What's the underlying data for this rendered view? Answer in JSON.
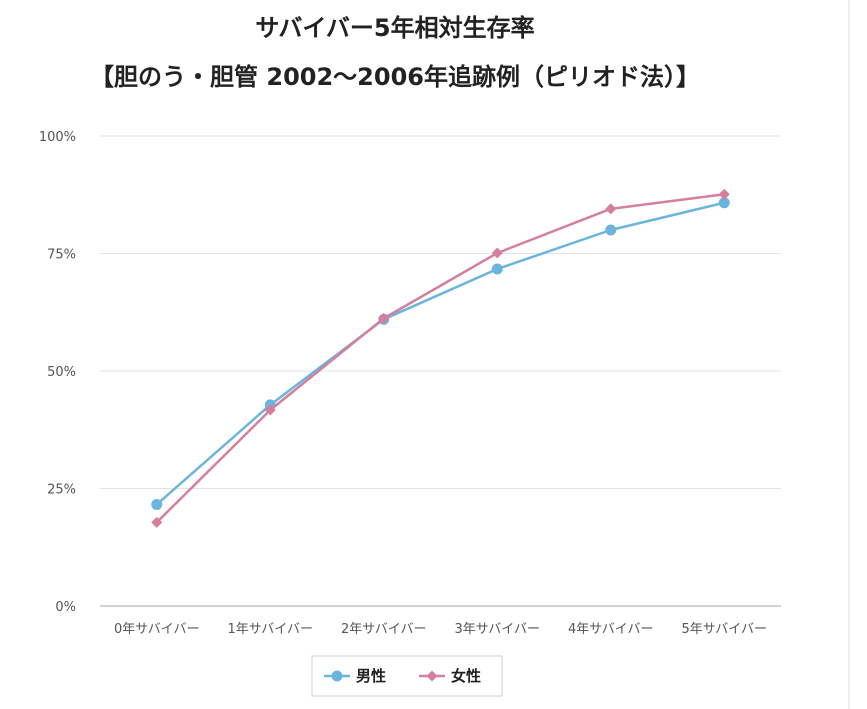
{
  "chart_data": {
    "type": "line",
    "title": "サバイバー5年相対生存率",
    "subtitle": "【胆のう・胆管 2002〜2006年追跡例（ピリオド法）】",
    "xlabel": "",
    "ylabel": "",
    "ylim": [
      0,
      1
    ],
    "yticks": [
      {
        "value": 0,
        "label": "0%"
      },
      {
        "value": 0.25,
        "label": "25%"
      },
      {
        "value": 0.5,
        "label": "50%"
      },
      {
        "value": 0.75,
        "label": "75%"
      },
      {
        "value": 1,
        "label": "100%"
      }
    ],
    "categories": [
      "0年サバイバー",
      "1年サバイバー",
      "2年サバイバー",
      "3年サバイバー",
      "4年サバイバー",
      "5年サバイバー"
    ],
    "grid": true,
    "legend_position": "bottom",
    "series": [
      {
        "name": "男性",
        "color": "#6bb5dc",
        "marker": "circle",
        "values": [
          0.216,
          0.428,
          0.61,
          0.717,
          0.8,
          0.858
        ]
      },
      {
        "name": "女性",
        "color": "#d47f9f",
        "marker": "diamond",
        "values": [
          0.178,
          0.417,
          0.612,
          0.751,
          0.845,
          0.876
        ]
      }
    ]
  }
}
